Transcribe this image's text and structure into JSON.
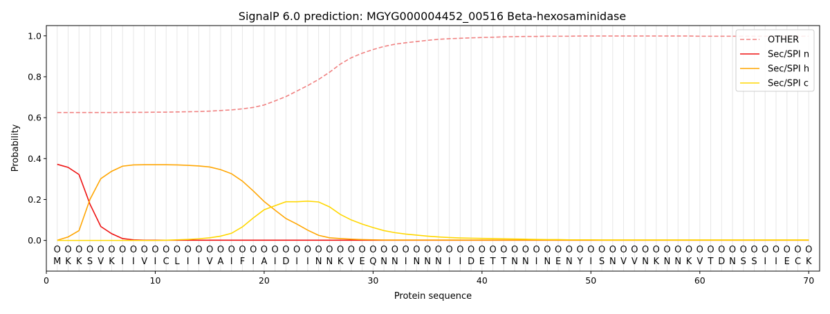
{
  "chart_data": {
    "type": "line",
    "title": "SignalP 6.0 prediction: MGYG000004452_00516 Beta-hexosaminidase",
    "xlabel": "Protein sequence",
    "ylabel": "Probability",
    "xlim": [
      0,
      71
    ],
    "ylim": [
      -0.15,
      1.05
    ],
    "xticks": [
      0,
      10,
      20,
      30,
      40,
      50,
      60,
      70
    ],
    "yticks": [
      0.0,
      0.2,
      0.4,
      0.6,
      0.8,
      1.0
    ],
    "ytick_labels": [
      "0.0",
      "0.2",
      "0.4",
      "0.6",
      "0.8",
      "1.0"
    ],
    "grid": "vertical lines at each residue",
    "legend_position": "top-right",
    "sequence": "MKKSVKIIVICLIIVAIFIAIDIINNKVEQNNINNNIIDETTNNINENYISNVVNKNNKVTDNSSIIECK",
    "residue_marker": "O",
    "series": [
      {
        "name": "OTHER",
        "color": "#f08080",
        "dash": true,
        "values": [
          0.625,
          0.625,
          0.625,
          0.625,
          0.625,
          0.625,
          0.626,
          0.626,
          0.626,
          0.627,
          0.627,
          0.628,
          0.629,
          0.63,
          0.632,
          0.635,
          0.638,
          0.643,
          0.65,
          0.662,
          0.682,
          0.703,
          0.73,
          0.757,
          0.787,
          0.822,
          0.862,
          0.893,
          0.915,
          0.933,
          0.948,
          0.959,
          0.966,
          0.972,
          0.978,
          0.983,
          0.986,
          0.988,
          0.99,
          0.992,
          0.993,
          0.995,
          0.996,
          0.997,
          0.997,
          0.998,
          0.998,
          0.998,
          0.999,
          0.999,
          0.999,
          0.999,
          0.999,
          0.999,
          0.999,
          0.999,
          0.999,
          0.999,
          0.999,
          0.998,
          0.998,
          0.998,
          0.998,
          0.998,
          0.998,
          0.998,
          0.998,
          0.998,
          0.998,
          0.998
        ]
      },
      {
        "name": "Sec/SPI n",
        "color": "#ee1010",
        "dash": false,
        "values": [
          0.372,
          0.357,
          0.322,
          0.178,
          0.068,
          0.033,
          0.009,
          0.003,
          0.001,
          0.001,
          0.001,
          0.001,
          0.001,
          0.001,
          0.001,
          0.001,
          0.001,
          0.001,
          0.001,
          0.001,
          0.001,
          0.001,
          0.001,
          0.001,
          0.001,
          0.001,
          0.001,
          0.001,
          0.001,
          0.001,
          0.001,
          0.001,
          0.001,
          0.001,
          0.001,
          0.001,
          0.001,
          0.001,
          0.001,
          0.001,
          0.001,
          0.001,
          0.001,
          0.001,
          0.001,
          0.001,
          0.001,
          0.001,
          0.001,
          0.001,
          0.001,
          0.001,
          0.001,
          0.001,
          0.001,
          0.001,
          0.001,
          0.001,
          0.001,
          0.001,
          0.001,
          0.001,
          0.001,
          0.001,
          0.001,
          0.001,
          0.001,
          0.001,
          0.001,
          0.001
        ]
      },
      {
        "name": "Sec/SPI h",
        "color": "#ffa500",
        "dash": false,
        "values": [
          0.001,
          0.017,
          0.048,
          0.2,
          0.302,
          0.338,
          0.363,
          0.369,
          0.37,
          0.37,
          0.37,
          0.369,
          0.367,
          0.364,
          0.359,
          0.346,
          0.326,
          0.29,
          0.242,
          0.19,
          0.148,
          0.107,
          0.08,
          0.05,
          0.025,
          0.013,
          0.009,
          0.006,
          0.004,
          0.003,
          0.002,
          0.002,
          0.002,
          0.002,
          0.002,
          0.002,
          0.002,
          0.002,
          0.002,
          0.002,
          0.002,
          0.002,
          0.002,
          0.002,
          0.002,
          0.002,
          0.002,
          0.002,
          0.002,
          0.002,
          0.002,
          0.002,
          0.002,
          0.002,
          0.002,
          0.002,
          0.002,
          0.002,
          0.002,
          0.002,
          0.002,
          0.002,
          0.002,
          0.002,
          0.002,
          0.002,
          0.002,
          0.002,
          0.002,
          0.002
        ]
      },
      {
        "name": "Sec/SPI c",
        "color": "#ffd700",
        "dash": false,
        "values": [
          0.0,
          0.0,
          0.0,
          0.0,
          0.0,
          0.0,
          0.0,
          0.0,
          0.0,
          0.0,
          0.001,
          0.003,
          0.005,
          0.008,
          0.013,
          0.021,
          0.035,
          0.066,
          0.11,
          0.15,
          0.17,
          0.189,
          0.189,
          0.192,
          0.188,
          0.164,
          0.127,
          0.1,
          0.08,
          0.063,
          0.048,
          0.038,
          0.031,
          0.026,
          0.021,
          0.017,
          0.014,
          0.012,
          0.011,
          0.01,
          0.009,
          0.008,
          0.007,
          0.006,
          0.005,
          0.004,
          0.004,
          0.003,
          0.003,
          0.003,
          0.002,
          0.002,
          0.002,
          0.002,
          0.002,
          0.002,
          0.002,
          0.002,
          0.002,
          0.002,
          0.002,
          0.002,
          0.002,
          0.002,
          0.002,
          0.002,
          0.002,
          0.002,
          0.002,
          0.002
        ]
      }
    ]
  }
}
